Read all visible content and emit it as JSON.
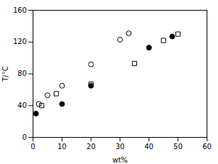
{
  "chart_data": {
    "type": "scatter",
    "xlabel": "wt%",
    "ylabel": "T/°C",
    "series": [
      {
        "x": [
          2,
          5,
          10,
          20,
          30,
          33
        ],
        "values": [
          42,
          53,
          65,
          92,
          123,
          131
        ],
        "color": "black",
        "marker": "open_circle"
      },
      {
        "x": [
          1,
          10,
          20,
          40,
          48
        ],
        "values": [
          30,
          42,
          65,
          113,
          127
        ],
        "color": "black",
        "marker": "filled_circle"
      },
      {
        "x": [
          3,
          8,
          20,
          35,
          45,
          50
        ],
        "values": [
          40,
          55,
          67,
          93,
          122,
          130
        ],
        "color": "black",
        "marker": "open_square"
      }
    ],
    "xlim": [
      0,
      60
    ],
    "ylim": [
      0,
      160
    ],
    "xticks": [
      0,
      10,
      20,
      30,
      40,
      50,
      60
    ],
    "yticks": [
      0,
      40,
      80,
      120,
      160
    ],
    "grid": false
  }
}
